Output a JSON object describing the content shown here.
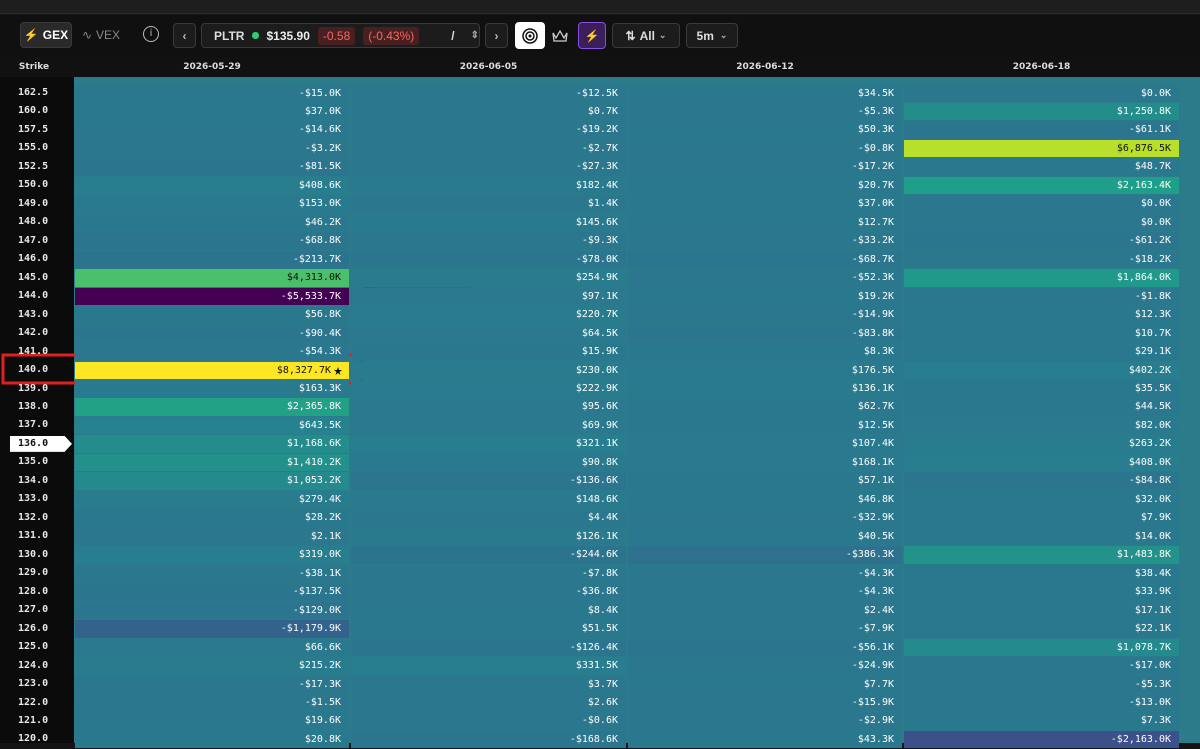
{
  "toolbar": {
    "gex": "GEX",
    "vex": "VEX",
    "ticker": "PLTR",
    "price": "$135.90",
    "change": "-0.58",
    "change_pct": "(-0.43%)",
    "separator": "/",
    "filter": "All",
    "interval": "5m"
  },
  "table": {
    "strike_header": "Strike",
    "columns": [
      "2026-05-29",
      "2026-06-05",
      "2026-06-12",
      "2026-06-18"
    ],
    "rows": [
      [
        "162.5",
        "-$15.0K",
        "-$12.5K",
        "$34.5K",
        "$0.0K"
      ],
      [
        "160.0",
        "$37.0K",
        "$0.7K",
        "-$5.3K",
        "$1,250.8K"
      ],
      [
        "157.5",
        "-$14.6K",
        "-$19.2K",
        "$50.3K",
        "-$61.1K"
      ],
      [
        "155.0",
        "-$3.2K",
        "-$2.7K",
        "-$0.8K",
        "$6,876.5K"
      ],
      [
        "152.5",
        "-$81.5K",
        "-$27.3K",
        "-$17.2K",
        "$48.7K"
      ],
      [
        "150.0",
        "$408.6K",
        "$182.4K",
        "$20.7K",
        "$2,163.4K"
      ],
      [
        "149.0",
        "$153.0K",
        "$1.4K",
        "$37.0K",
        "$0.0K"
      ],
      [
        "148.0",
        "$46.2K",
        "$145.6K",
        "$12.7K",
        "$0.0K"
      ],
      [
        "147.0",
        "-$68.8K",
        "-$9.3K",
        "-$33.2K",
        "-$61.2K"
      ],
      [
        "146.0",
        "-$213.7K",
        "-$78.0K",
        "-$68.7K",
        "-$18.2K"
      ],
      [
        "145.0",
        "$4,313.0K",
        "$254.9K",
        "-$52.3K",
        "$1,864.0K"
      ],
      [
        "144.0",
        "-$5,533.7K",
        "$97.1K",
        "$19.2K",
        "-$1.8K"
      ],
      [
        "143.0",
        "$56.8K",
        "$220.7K",
        "-$14.9K",
        "$12.3K"
      ],
      [
        "142.0",
        "-$90.4K",
        "$64.5K",
        "-$83.8K",
        "$10.7K"
      ],
      [
        "141.0",
        "-$54.3K",
        "$15.9K",
        "$8.3K",
        "$29.1K"
      ],
      [
        "140.0",
        "$8,327.7K",
        "$230.0K",
        "$176.5K",
        "$402.2K"
      ],
      [
        "139.0",
        "$163.3K",
        "$222.9K",
        "$136.1K",
        "$35.5K"
      ],
      [
        "138.0",
        "$2,365.8K",
        "$95.6K",
        "$62.7K",
        "$44.5K"
      ],
      [
        "137.0",
        "$643.5K",
        "$69.9K",
        "$12.5K",
        "$82.0K"
      ],
      [
        "136.0",
        "$1,168.6K",
        "$321.1K",
        "$107.4K",
        "$263.2K"
      ],
      [
        "135.0",
        "$1,410.2K",
        "$90.8K",
        "$168.1K",
        "$408.0K"
      ],
      [
        "134.0",
        "$1,053.2K",
        "-$136.6K",
        "$57.1K",
        "-$84.8K"
      ],
      [
        "133.0",
        "$279.4K",
        "$148.6K",
        "$46.8K",
        "$32.0K"
      ],
      [
        "132.0",
        "$28.2K",
        "$4.4K",
        "-$32.9K",
        "$7.9K"
      ],
      [
        "131.0",
        "$2.1K",
        "$126.1K",
        "$40.5K",
        "$14.0K"
      ],
      [
        "130.0",
        "$319.0K",
        "-$244.6K",
        "-$386.3K",
        "$1,483.8K"
      ],
      [
        "129.0",
        "-$38.1K",
        "-$7.8K",
        "-$4.3K",
        "$38.4K"
      ],
      [
        "128.0",
        "-$137.5K",
        "-$36.8K",
        "-$4.3K",
        "$33.9K"
      ],
      [
        "127.0",
        "-$129.0K",
        "$8.4K",
        "$2.4K",
        "$17.1K"
      ],
      [
        "126.0",
        "-$1,179.9K",
        "$51.5K",
        "-$7.9K",
        "$22.1K"
      ],
      [
        "125.0",
        "$66.6K",
        "-$126.4K",
        "-$56.1K",
        "$1,078.7K"
      ],
      [
        "124.0",
        "$215.2K",
        "$331.5K",
        "-$24.9K",
        "-$17.0K"
      ],
      [
        "123.0",
        "-$17.3K",
        "$3.7K",
        "$7.7K",
        "-$5.3K"
      ],
      [
        "122.0",
        "-$1.5K",
        "$2.6K",
        "-$15.9K",
        "-$13.0K"
      ],
      [
        "121.0",
        "$19.6K",
        "-$0.6K",
        "-$2.9K",
        "$7.3K"
      ],
      [
        "120.0",
        "$20.8K",
        "-$168.6K",
        "$43.3K",
        "-$2,163.0K"
      ]
    ]
  }
}
